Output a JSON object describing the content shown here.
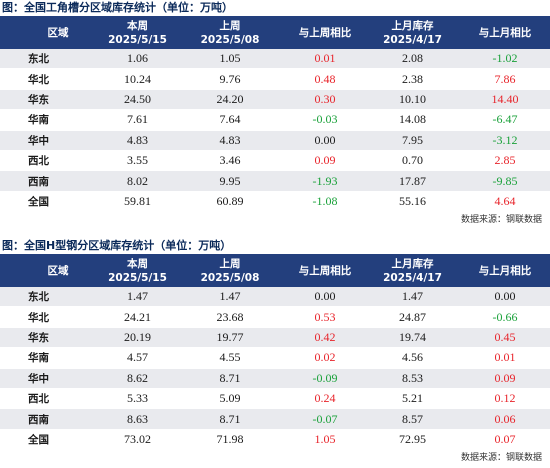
{
  "tables": [
    {
      "title": "图：全国工角槽分区域库存统计（单位：万吨）",
      "headers": [
        [
          "区域"
        ],
        [
          "本周",
          "2025/5/15"
        ],
        [
          "上周",
          "2025/5/08"
        ],
        [
          "与上周相比"
        ],
        [
          "上月库存",
          "2025/4/17"
        ],
        [
          "与上月相比"
        ]
      ],
      "rows": [
        {
          "region": "东北",
          "this_week": "1.06",
          "last_week": "1.05",
          "wow": "0.01",
          "last_month": "2.08",
          "mom": "-1.02"
        },
        {
          "region": "华北",
          "this_week": "10.24",
          "last_week": "9.76",
          "wow": "0.48",
          "last_month": "2.38",
          "mom": "7.86"
        },
        {
          "region": "华东",
          "this_week": "24.50",
          "last_week": "24.20",
          "wow": "0.30",
          "last_month": "10.10",
          "mom": "14.40"
        },
        {
          "region": "华南",
          "this_week": "7.61",
          "last_week": "7.64",
          "wow": "-0.03",
          "last_month": "14.08",
          "mom": "-6.47"
        },
        {
          "region": "华中",
          "this_week": "4.83",
          "last_week": "4.83",
          "wow": "0.00",
          "last_month": "7.95",
          "mom": "-3.12"
        },
        {
          "region": "西北",
          "this_week": "3.55",
          "last_week": "3.46",
          "wow": "0.09",
          "last_month": "0.70",
          "mom": "2.85"
        },
        {
          "region": "西南",
          "this_week": "8.02",
          "last_week": "9.95",
          "wow": "-1.93",
          "last_month": "17.87",
          "mom": "-9.85"
        },
        {
          "region": "全国",
          "this_week": "59.81",
          "last_week": "60.89",
          "wow": "-1.08",
          "last_month": "55.16",
          "mom": "4.64"
        }
      ],
      "source": "数据来源：钢联数据"
    },
    {
      "title": "图：全国H型钢分区域库存统计（单位：万吨）",
      "headers": [
        [
          "区域"
        ],
        [
          "本周",
          "2025/5/15"
        ],
        [
          "上周",
          "2025/5/08"
        ],
        [
          "与上周相比"
        ],
        [
          "上月库存",
          "2025/4/17"
        ],
        [
          "与上月相比"
        ]
      ],
      "rows": [
        {
          "region": "东北",
          "this_week": "1.47",
          "last_week": "1.47",
          "wow": "0.00",
          "last_month": "1.47",
          "mom": "0.00"
        },
        {
          "region": "华北",
          "this_week": "24.21",
          "last_week": "23.68",
          "wow": "0.53",
          "last_month": "24.87",
          "mom": "-0.66"
        },
        {
          "region": "华东",
          "this_week": "20.19",
          "last_week": "19.77",
          "wow": "0.42",
          "last_month": "19.74",
          "mom": "0.45"
        },
        {
          "region": "华南",
          "this_week": "4.57",
          "last_week": "4.55",
          "wow": "0.02",
          "last_month": "4.56",
          "mom": "0.01"
        },
        {
          "region": "华中",
          "this_week": "8.62",
          "last_week": "8.71",
          "wow": "-0.09",
          "last_month": "8.53",
          "mom": "0.09"
        },
        {
          "region": "西北",
          "this_week": "5.33",
          "last_week": "5.09",
          "wow": "0.24",
          "last_month": "5.21",
          "mom": "0.12"
        },
        {
          "region": "西南",
          "this_week": "8.63",
          "last_week": "8.71",
          "wow": "-0.07",
          "last_month": "8.57",
          "mom": "0.06"
        },
        {
          "region": "全国",
          "this_week": "73.02",
          "last_week": "71.98",
          "wow": "1.05",
          "last_month": "72.95",
          "mom": "0.07"
        }
      ],
      "source": "数据来源：钢联数据"
    }
  ],
  "colors": {
    "header_bg": "#233f7d",
    "positive": "#e8242b",
    "negative": "#1aa13a",
    "row_stripe": "#e9eaee"
  }
}
